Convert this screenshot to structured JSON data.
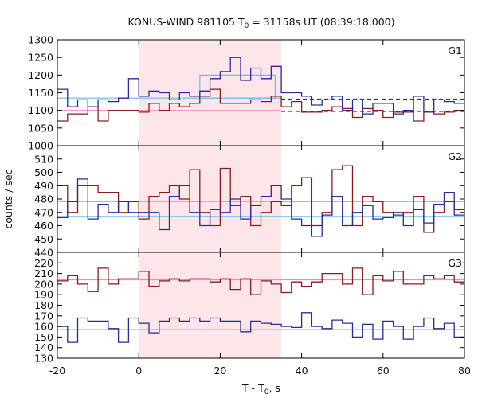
{
  "chart_data": {
    "type": "line",
    "title_main": "KONUS-WIND 981105 T",
    "title_sub": "0",
    "title_rest": " = 31158s UT (08:39:18.000)",
    "xlabel_main": "T - T",
    "xlabel_sub": "0",
    "xlabel_rest": ", s",
    "ylabel": "counts / sec",
    "xlim": [
      -20,
      80
    ],
    "x_ticks": [
      -20,
      0,
      20,
      40,
      60,
      80
    ],
    "x_tick_labels": [
      "-20",
      "0",
      "20",
      "40",
      "60",
      "80"
    ],
    "shaded_interval": [
      0,
      35
    ],
    "bin_width": 2.5,
    "colors": {
      "red": "#8b1a1a",
      "blue": "#2a2a9a",
      "bg_fit_red": "#ee88cc",
      "bg_fit_blue": "#66bbee",
      "dashed_red": "#aa1111",
      "dashed_blue": "#1a3a9a",
      "shade": "#fde6ea"
    },
    "panels": [
      {
        "label": "G1",
        "ylim": [
          1000,
          1300
        ],
        "y_ticks": [
          1000,
          1050,
          1100,
          1150,
          1200,
          1250,
          1300
        ],
        "y_tick_labels": [
          "1000",
          "1050",
          "1100",
          "1150",
          "1200",
          "1250",
          "1300"
        ],
        "series": [
          {
            "color": "red",
            "x_start": -20,
            "values": [
              1070,
              1090,
              1090,
              1110,
              1070,
              1100,
              1100,
              1100,
              1095,
              1120,
              1100,
              1120,
              1110,
              1120,
              1140,
              1160,
              1120,
              1120,
              1120,
              1130,
              1125,
              1140,
              1110,
              1125,
              1095,
              1095,
              1100,
              1110,
              1105,
              1080,
              1105,
              1100,
              1080,
              1095,
              1095,
              1070,
              1095,
              1090,
              1095,
              1100
            ]
          },
          {
            "color": "blue",
            "x_start": -20,
            "values": [
              1160,
              1110,
              1130,
              1110,
              1130,
              1125,
              1135,
              1190,
              1140,
              1155,
              1150,
              1130,
              1150,
              1140,
              1155,
              1190,
              1210,
              1250,
              1185,
              1220,
              1190,
              1225,
              1150,
              1150,
              1140,
              1115,
              1130,
              1140,
              1100,
              1130,
              1090,
              1120,
              1120,
              1090,
              1100,
              1140,
              1095,
              1130,
              1125,
              1120
            ]
          }
        ],
        "fit_levels": [
          {
            "color": "bg_fit_red",
            "value": 1100,
            "range": [
              -20,
              35
            ],
            "style": "solid"
          },
          {
            "color": "dashed_red",
            "value": 1097,
            "range": [
              35,
              80
            ],
            "style": "dashed"
          },
          {
            "color": "bg_fit_blue",
            "value": 1135,
            "range": [
              -20,
              35
            ],
            "style": "solid"
          },
          {
            "color": "dashed_blue",
            "value": 1132,
            "range": [
              35,
              80
            ],
            "style": "dashed"
          }
        ],
        "extra_boxes": [
          {
            "color": "bg_fit_blue",
            "x": [
              15,
              33.5
            ],
            "y": [
              1135,
              1200
            ]
          }
        ]
      },
      {
        "label": "G2",
        "ylim": [
          440,
          520
        ],
        "y_ticks": [
          440,
          450,
          460,
          470,
          480,
          490,
          500,
          510
        ],
        "y_tick_labels": [
          "440",
          "450",
          "460",
          "470",
          "480",
          "490",
          "500",
          "510"
        ],
        "series": [
          {
            "color": "red",
            "x_start": -20,
            "values": [
              490,
              470,
              490,
              490,
              485,
              485,
              470,
              478,
              465,
              482,
              485,
              490,
              480,
              502,
              470,
              460,
              503,
              475,
              482,
              460,
              470,
              478,
              475,
              490,
              496,
              460,
              470,
              502,
              505,
              460,
              482,
              478,
              470,
              468,
              470,
              482,
              455,
              470,
              478,
              472
            ]
          },
          {
            "color": "blue",
            "x_start": -20,
            "values": [
              466,
              478,
              495,
              465,
              476,
              470,
              478,
              470,
              470,
              470,
              457,
              482,
              490,
              470,
              460,
              472,
              470,
              480,
              465,
              475,
              482,
              490,
              480,
              465,
              460,
              452,
              468,
              482,
              460,
              470,
              475,
              465,
              466,
              470,
              460,
              472,
              462,
              476,
              485,
              468
            ]
          }
        ],
        "fit_levels": [
          {
            "color": "bg_fit_red",
            "value": 478,
            "range": [
              -20,
              80
            ],
            "style": "solid"
          },
          {
            "color": "bg_fit_blue",
            "value": 467,
            "range": [
              -20,
              80
            ],
            "style": "solid"
          }
        ],
        "extra_boxes": []
      },
      {
        "label": "G3",
        "ylim": [
          130,
          230
        ],
        "y_ticks": [
          130,
          140,
          150,
          160,
          170,
          180,
          190,
          200,
          210,
          220
        ],
        "y_tick_labels": [
          "130",
          "140",
          "150",
          "160",
          "170",
          "180",
          "190",
          "200",
          "210",
          "220"
        ],
        "series": [
          {
            "color": "red",
            "x_start": -20,
            "values": [
              203,
              208,
              200,
              193,
              215,
              200,
              205,
              205,
              212,
              198,
              203,
              205,
              203,
              205,
              205,
              202,
              205,
              195,
              205,
              190,
              203,
              200,
              192,
              202,
              198,
              202,
              210,
              210,
              200,
              215,
              190,
              208,
              203,
              212,
              200,
              200,
              208,
              205,
              208,
              202
            ]
          },
          {
            "color": "blue",
            "x_start": -20,
            "values": [
              160,
              145,
              168,
              165,
              165,
              158,
              145,
              168,
              163,
              154,
              165,
              168,
              165,
              168,
              165,
              168,
              165,
              165,
              155,
              165,
              163,
              162,
              160,
              159,
              173,
              160,
              158,
              166,
              163,
              150,
              162,
              148,
              165,
              160,
              148,
              160,
              168,
              158,
              163,
              150
            ]
          }
        ],
        "fit_levels": [
          {
            "color": "bg_fit_red",
            "value": 204,
            "range": [
              -20,
              80
            ],
            "style": "solid"
          },
          {
            "color": "bg_fit_blue",
            "value": 157,
            "range": [
              -20,
              80
            ],
            "style": "solid"
          }
        ],
        "extra_boxes": []
      }
    ]
  }
}
